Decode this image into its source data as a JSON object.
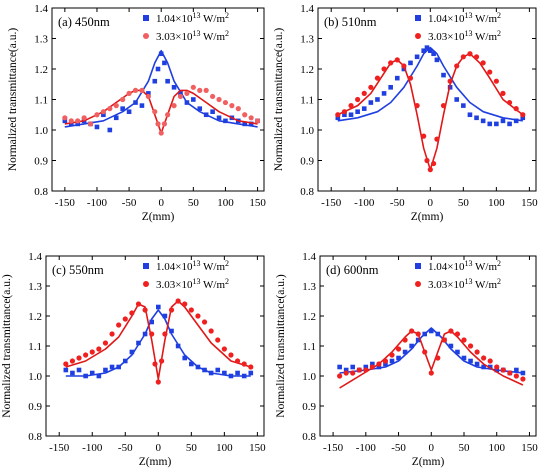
{
  "chart_data": [
    {
      "type": "scatter",
      "title": "(a) 450nm",
      "xlabel": "Z(mm)",
      "ylabel": "Normalized transmittance(a.u.)",
      "xlim": [
        -170,
        160
      ],
      "ylim": [
        0.8,
        1.4
      ],
      "xticks": [
        "-150",
        "-100",
        "-50",
        "0",
        "50",
        "100",
        "150"
      ],
      "yticks": [
        "0.8",
        "0.9",
        "1.0",
        "1.1",
        "1.2",
        "1.3",
        "1.4"
      ],
      "legend_position": "top-right",
      "series": [
        {
          "name": "1.04×10¹³ W/m²",
          "marker": "square",
          "color": "#1f3fe0",
          "x": [
            -150,
            -140,
            -130,
            -120,
            -110,
            -100,
            -90,
            -80,
            -70,
            -60,
            -50,
            -40,
            -30,
            -20,
            -10,
            -5,
            0,
            5,
            10,
            20,
            30,
            40,
            50,
            60,
            70,
            80,
            90,
            100,
            110,
            120,
            130,
            140,
            150
          ],
          "y": [
            1.03,
            1.02,
            1.02,
            1.03,
            1.02,
            1.01,
            1.05,
            1.0,
            1.04,
            1.07,
            1.06,
            1.09,
            1.08,
            1.12,
            1.16,
            1.2,
            1.25,
            1.22,
            1.16,
            1.14,
            1.12,
            1.09,
            1.1,
            1.07,
            1.05,
            1.06,
            1.04,
            1.03,
            1.04,
            1.03,
            1.02,
            1.02,
            1.03
          ],
          "fit_x": [
            -150,
            -120,
            -90,
            -60,
            -40,
            -20,
            -10,
            0,
            10,
            20,
            40,
            60,
            90,
            120,
            150
          ],
          "fit_y": [
            1.01,
            1.02,
            1.03,
            1.06,
            1.09,
            1.16,
            1.22,
            1.26,
            1.22,
            1.16,
            1.09,
            1.06,
            1.03,
            1.02,
            1.01
          ]
        },
        {
          "name": "3.03×10¹³ W/m²",
          "marker": "circle",
          "color": "#f06060",
          "x": [
            -150,
            -140,
            -130,
            -120,
            -110,
            -100,
            -90,
            -80,
            -70,
            -60,
            -50,
            -40,
            -30,
            -20,
            -10,
            -5,
            0,
            5,
            10,
            20,
            30,
            40,
            50,
            60,
            70,
            80,
            90,
            100,
            110,
            120,
            130,
            140,
            150
          ],
          "y": [
            1.04,
            1.03,
            1.03,
            1.04,
            1.02,
            1.05,
            1.06,
            1.07,
            1.08,
            1.1,
            1.12,
            1.13,
            1.13,
            1.11,
            1.06,
            1.02,
            0.99,
            1.02,
            1.05,
            1.08,
            1.11,
            1.12,
            1.14,
            1.13,
            1.13,
            1.11,
            1.1,
            1.09,
            1.08,
            1.07,
            1.05,
            1.04,
            1.03
          ],
          "fit_x": [
            -150,
            -120,
            -90,
            -70,
            -50,
            -40,
            -30,
            -20,
            -10,
            0,
            10,
            20,
            30,
            40,
            50,
            70,
            90,
            120,
            150
          ],
          "fit_y": [
            1.02,
            1.03,
            1.06,
            1.09,
            1.12,
            1.13,
            1.13,
            1.11,
            1.05,
            0.99,
            1.05,
            1.11,
            1.13,
            1.13,
            1.12,
            1.09,
            1.06,
            1.03,
            1.02
          ]
        }
      ]
    },
    {
      "type": "scatter",
      "title": "(b) 510nm",
      "xlabel": "Z(mm)",
      "ylabel": "Normalized transmittance(a.u.)",
      "xlim": [
        -170,
        160
      ],
      "ylim": [
        0.8,
        1.4
      ],
      "xticks": [
        "-150",
        "-100",
        "-50",
        "0",
        "50",
        "100",
        "150"
      ],
      "yticks": [
        "0.8",
        "0.9",
        "1.0",
        "1.1",
        "1.2",
        "1.3",
        "1.4"
      ],
      "legend_position": "top-right",
      "series": [
        {
          "name": "1.04×10¹³ W/m²",
          "marker": "square",
          "color": "#1f3fe0",
          "x": [
            -140,
            -130,
            -120,
            -110,
            -100,
            -90,
            -80,
            -70,
            -60,
            -50,
            -40,
            -30,
            -20,
            -10,
            -5,
            0,
            5,
            10,
            20,
            30,
            40,
            50,
            60,
            70,
            80,
            90,
            100,
            110,
            120,
            130,
            140
          ],
          "y": [
            1.04,
            1.05,
            1.05,
            1.06,
            1.07,
            1.09,
            1.1,
            1.12,
            1.14,
            1.17,
            1.2,
            1.22,
            1.24,
            1.26,
            1.27,
            1.26,
            1.25,
            1.23,
            1.18,
            1.14,
            1.1,
            1.08,
            1.05,
            1.04,
            1.03,
            1.02,
            1.02,
            1.03,
            1.02,
            1.03,
            1.04
          ],
          "fit_x": [
            -140,
            -110,
            -80,
            -60,
            -40,
            -20,
            -10,
            0,
            10,
            20,
            40,
            60,
            80,
            110,
            140
          ],
          "fit_y": [
            1.03,
            1.04,
            1.06,
            1.09,
            1.14,
            1.21,
            1.25,
            1.27,
            1.25,
            1.21,
            1.14,
            1.09,
            1.06,
            1.04,
            1.03
          ]
        },
        {
          "name": "3.03×10¹³ W/m²",
          "marker": "circle",
          "color": "#f02020",
          "x": [
            -140,
            -130,
            -120,
            -110,
            -100,
            -90,
            -80,
            -70,
            -60,
            -50,
            -40,
            -30,
            -20,
            -10,
            -5,
            0,
            5,
            10,
            20,
            30,
            40,
            50,
            60,
            70,
            80,
            90,
            100,
            110,
            120,
            130,
            140
          ],
          "y": [
            1.05,
            1.06,
            1.08,
            1.1,
            1.12,
            1.14,
            1.17,
            1.2,
            1.22,
            1.23,
            1.21,
            1.17,
            1.08,
            0.98,
            0.9,
            0.87,
            0.89,
            0.97,
            1.08,
            1.16,
            1.21,
            1.24,
            1.25,
            1.24,
            1.22,
            1.19,
            1.16,
            1.12,
            1.09,
            1.07,
            1.05
          ],
          "fit_x": [
            -140,
            -110,
            -90,
            -75,
            -60,
            -50,
            -40,
            -30,
            -20,
            -10,
            0,
            10,
            20,
            30,
            40,
            50,
            60,
            75,
            90,
            110,
            140
          ],
          "fit_y": [
            1.05,
            1.08,
            1.12,
            1.17,
            1.22,
            1.23,
            1.21,
            1.15,
            1.05,
            0.94,
            0.87,
            0.94,
            1.05,
            1.15,
            1.21,
            1.24,
            1.25,
            1.22,
            1.17,
            1.1,
            1.05
          ]
        }
      ]
    },
    {
      "type": "scatter",
      "title": "(c) 550nm",
      "xlabel": "Z(mm)",
      "ylabel": "Normalized transmittance(a.u.)",
      "xlim": [
        -170,
        160
      ],
      "ylim": [
        0.8,
        1.4
      ],
      "xticks": [
        "-150",
        "-100",
        "-50",
        "0",
        "50",
        "100",
        "150"
      ],
      "yticks": [
        "0.8",
        "0.9",
        "1.0",
        "1.1",
        "1.2",
        "1.3",
        "1.4"
      ],
      "legend_position": "top-right",
      "series": [
        {
          "name": "1.04×10¹³ W/m²",
          "marker": "square",
          "color": "#1f3fe0",
          "x": [
            -140,
            -130,
            -120,
            -110,
            -100,
            -90,
            -80,
            -70,
            -60,
            -50,
            -40,
            -30,
            -20,
            -10,
            0,
            10,
            20,
            30,
            40,
            50,
            60,
            70,
            80,
            90,
            100,
            110,
            120,
            130,
            140
          ],
          "y": [
            1.02,
            1.01,
            1.02,
            1.0,
            1.01,
            1.0,
            1.02,
            1.03,
            1.03,
            1.05,
            1.08,
            1.11,
            1.14,
            1.18,
            1.23,
            1.2,
            1.15,
            1.1,
            1.06,
            1.04,
            1.03,
            1.02,
            1.01,
            1.02,
            1.01,
            1.0,
            1.01,
            1.0,
            1.01
          ],
          "fit_x": [
            -140,
            -110,
            -80,
            -60,
            -40,
            -20,
            -10,
            0,
            10,
            20,
            40,
            60,
            80,
            110,
            140
          ],
          "fit_y": [
            1.0,
            1.0,
            1.01,
            1.03,
            1.07,
            1.14,
            1.19,
            1.22,
            1.19,
            1.14,
            1.07,
            1.03,
            1.01,
            1.0,
            1.0
          ]
        },
        {
          "name": "3.03×10¹³ W/m²",
          "marker": "circle",
          "color": "#f02020",
          "x": [
            -140,
            -130,
            -120,
            -110,
            -100,
            -90,
            -80,
            -70,
            -60,
            -50,
            -40,
            -30,
            -20,
            -10,
            -5,
            0,
            5,
            10,
            20,
            30,
            40,
            50,
            60,
            70,
            80,
            90,
            100,
            110,
            120,
            130,
            140
          ],
          "y": [
            1.04,
            1.05,
            1.06,
            1.07,
            1.08,
            1.09,
            1.11,
            1.14,
            1.17,
            1.19,
            1.21,
            1.24,
            1.22,
            1.14,
            1.04,
            0.98,
            1.05,
            1.14,
            1.22,
            1.25,
            1.24,
            1.22,
            1.2,
            1.18,
            1.15,
            1.12,
            1.09,
            1.07,
            1.05,
            1.04,
            1.03
          ],
          "fit_x": [
            -140,
            -110,
            -80,
            -60,
            -40,
            -30,
            -20,
            -10,
            0,
            10,
            20,
            30,
            40,
            60,
            80,
            110,
            140
          ],
          "fit_y": [
            1.03,
            1.05,
            1.09,
            1.13,
            1.2,
            1.24,
            1.23,
            1.12,
            0.99,
            1.12,
            1.23,
            1.25,
            1.23,
            1.17,
            1.11,
            1.05,
            1.03
          ]
        }
      ]
    },
    {
      "type": "scatter",
      "title": "(d) 600nm",
      "xlabel": "Z(mm)",
      "ylabel": "Normalized transmittance(a.u.)",
      "xlim": [
        -170,
        160
      ],
      "ylim": [
        0.8,
        1.4
      ],
      "xticks": [
        "-150",
        "-100",
        "-50",
        "0",
        "50",
        "100",
        "150"
      ],
      "yticks": [
        "0.8",
        "0.9",
        "1.0",
        "1.1",
        "1.2",
        "1.3",
        "1.4"
      ],
      "legend_position": "top-right",
      "series": [
        {
          "name": "1.04×10¹³ W/m²",
          "marker": "square",
          "color": "#1f3fe0",
          "x": [
            -140,
            -130,
            -120,
            -110,
            -100,
            -90,
            -80,
            -70,
            -60,
            -50,
            -40,
            -30,
            -20,
            -10,
            0,
            10,
            20,
            30,
            40,
            50,
            60,
            70,
            80,
            90,
            100,
            110,
            120,
            130,
            140
          ],
          "y": [
            1.03,
            1.02,
            1.03,
            1.02,
            1.03,
            1.04,
            1.03,
            1.04,
            1.05,
            1.06,
            1.08,
            1.1,
            1.12,
            1.14,
            1.15,
            1.14,
            1.12,
            1.1,
            1.08,
            1.06,
            1.05,
            1.04,
            1.03,
            1.03,
            1.02,
            1.02,
            1.01,
            1.02,
            1.01
          ],
          "fit_x": [
            -140,
            -100,
            -70,
            -50,
            -30,
            -15,
            0,
            15,
            30,
            50,
            70,
            100,
            140
          ],
          "fit_y": [
            1.01,
            1.02,
            1.03,
            1.05,
            1.09,
            1.13,
            1.16,
            1.13,
            1.09,
            1.05,
            1.03,
            1.02,
            1.01
          ]
        },
        {
          "name": "3.03×10¹³ W/m²",
          "marker": "circle",
          "color": "#f02020",
          "x": [
            -140,
            -130,
            -120,
            -110,
            -100,
            -90,
            -80,
            -70,
            -60,
            -50,
            -40,
            -30,
            -20,
            -10,
            0,
            10,
            20,
            30,
            40,
            50,
            60,
            70,
            80,
            90,
            100,
            110,
            120,
            130,
            140
          ],
          "y": [
            1.0,
            1.01,
            1.01,
            1.02,
            1.02,
            1.03,
            1.04,
            1.05,
            1.07,
            1.09,
            1.12,
            1.15,
            1.14,
            1.08,
            1.01,
            1.06,
            1.12,
            1.15,
            1.14,
            1.12,
            1.1,
            1.08,
            1.06,
            1.05,
            1.03,
            1.02,
            1.01,
            1.0,
            0.99
          ],
          "fit_x": [
            -140,
            -110,
            -80,
            -60,
            -40,
            -30,
            -20,
            -10,
            0,
            10,
            20,
            30,
            40,
            60,
            80,
            110,
            140
          ],
          "fit_y": [
            0.96,
            1.0,
            1.04,
            1.08,
            1.13,
            1.15,
            1.14,
            1.08,
            1.02,
            1.08,
            1.14,
            1.15,
            1.13,
            1.08,
            1.04,
            1.0,
            0.97
          ]
        }
      ]
    }
  ]
}
